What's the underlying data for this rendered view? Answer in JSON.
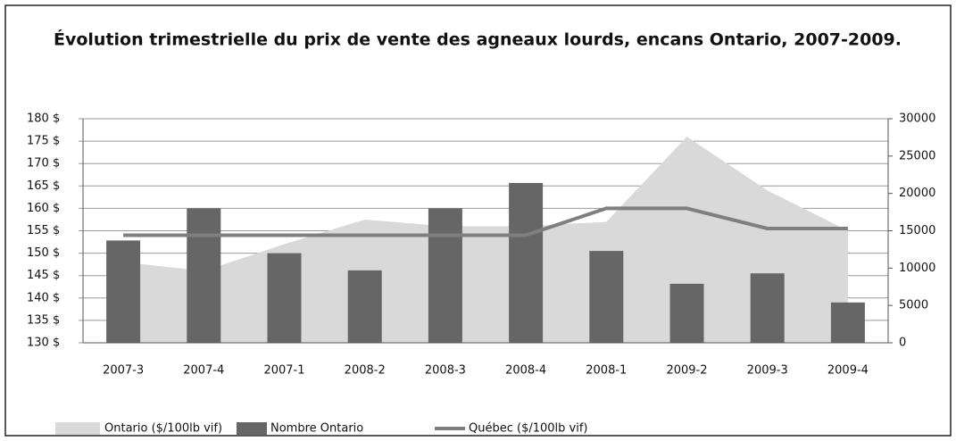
{
  "chart_data": {
    "type": "combo",
    "title": "Évolution trimestrielle du prix de vente des agneaux lourds, encans Ontario, 2007-2009.",
    "categories": [
      "2007-3",
      "2007-4",
      "2007-1",
      "2008-2",
      "2008-3",
      "2008-4",
      "2008-1",
      "2009-2",
      "2009-3",
      "2009-4"
    ],
    "series": [
      {
        "name": "Ontario ($/100lb vif)",
        "type": "area",
        "color": "#d9d9d9",
        "values": [
          148,
          146,
          152,
          157.5,
          156,
          156,
          157,
          176,
          164,
          155
        ]
      },
      {
        "name": "Nombre Ontario",
        "type": "bar",
        "axis": "y2",
        "color": "#666666",
        "values": [
          13700,
          18000,
          12000,
          9700,
          18000,
          21400,
          12300,
          7900,
          9300,
          5400
        ]
      },
      {
        "name": "Québec ($/100lb vif)",
        "type": "line",
        "color": "#7f7f7f",
        "values": [
          154,
          154,
          154,
          154,
          154,
          154,
          160,
          160,
          155.5,
          155.5
        ]
      }
    ],
    "ylim": [
      130,
      180
    ],
    "yticks": [
      {
        "value": 130,
        "label": "130 $"
      },
      {
        "value": 135,
        "label": "135 $"
      },
      {
        "value": 140,
        "label": "140 $"
      },
      {
        "value": 145,
        "label": "145 $"
      },
      {
        "value": 150,
        "label": "150 $"
      },
      {
        "value": 155,
        "label": "155 $"
      },
      {
        "value": 160,
        "label": "160 $"
      },
      {
        "value": 165,
        "label": "165 $"
      },
      {
        "value": 170,
        "label": "170 $"
      },
      {
        "value": 175,
        "label": "175 $"
      },
      {
        "value": 180,
        "label": "180 $"
      }
    ],
    "y2lim": [
      0,
      30000
    ],
    "y2ticks": [
      0,
      5000,
      10000,
      15000,
      20000,
      25000,
      30000
    ],
    "grid": true
  }
}
